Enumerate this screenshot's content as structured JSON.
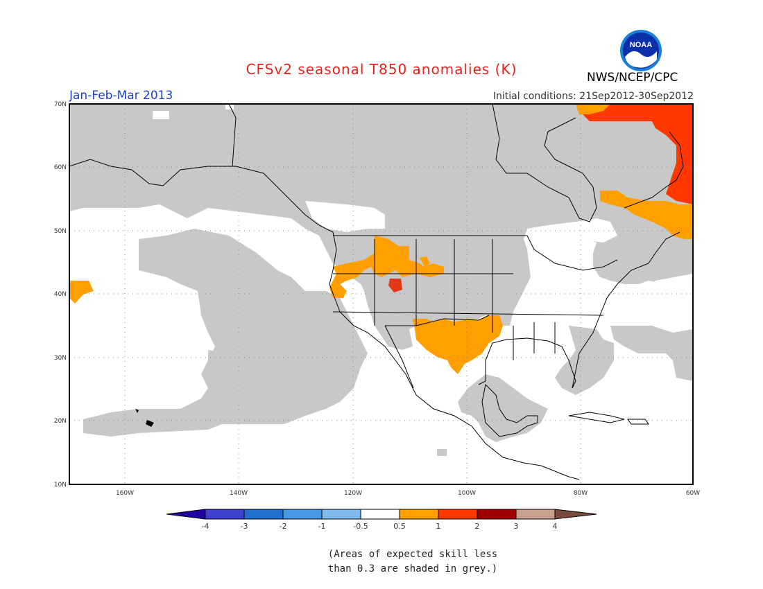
{
  "header": {
    "title": "CFSv2 seasonal T850 anomalies (K)",
    "period": "Jan-Feb-Mar 2013",
    "initial_conditions": "Initial conditions: 21Sep2012-30Sep2012",
    "agency": "NWS/NCEP/CPC",
    "logo_text": "NOAA"
  },
  "map": {
    "lat_labels": [
      "70N",
      "60N",
      "50N",
      "40N",
      "30N",
      "20N",
      "10N"
    ],
    "lon_labels": [
      "160W",
      "140W",
      "120W",
      "100W",
      "80W",
      "60W"
    ],
    "extent": {
      "lon_min": -172,
      "lon_max": -60,
      "lat_min": 10,
      "lat_max": 70
    }
  },
  "legend": {
    "labels": [
      "-4",
      "-3",
      "-2",
      "-1",
      "-0.5",
      "0.5",
      "1",
      "2",
      "3",
      "4"
    ],
    "colors": [
      "#2000a0",
      "#4040d0",
      "#2070d0",
      "#4898e8",
      "#80b8f0",
      "#ffffff",
      "#ffa000",
      "#ff3800",
      "#a00000",
      "#c8a090",
      "#7a4a3a"
    ]
  },
  "note": {
    "line1": "(Areas of expected skill less",
    "line2": "than 0.3 are shaded in grey.)"
  },
  "colors": {
    "title": "#e8201c",
    "period": "#1a3fd0",
    "skill_grey": "#c8c8c8",
    "anom_orange": "#ffa000",
    "anom_red": "#ff3800",
    "anom_darkred": "#e03818"
  }
}
